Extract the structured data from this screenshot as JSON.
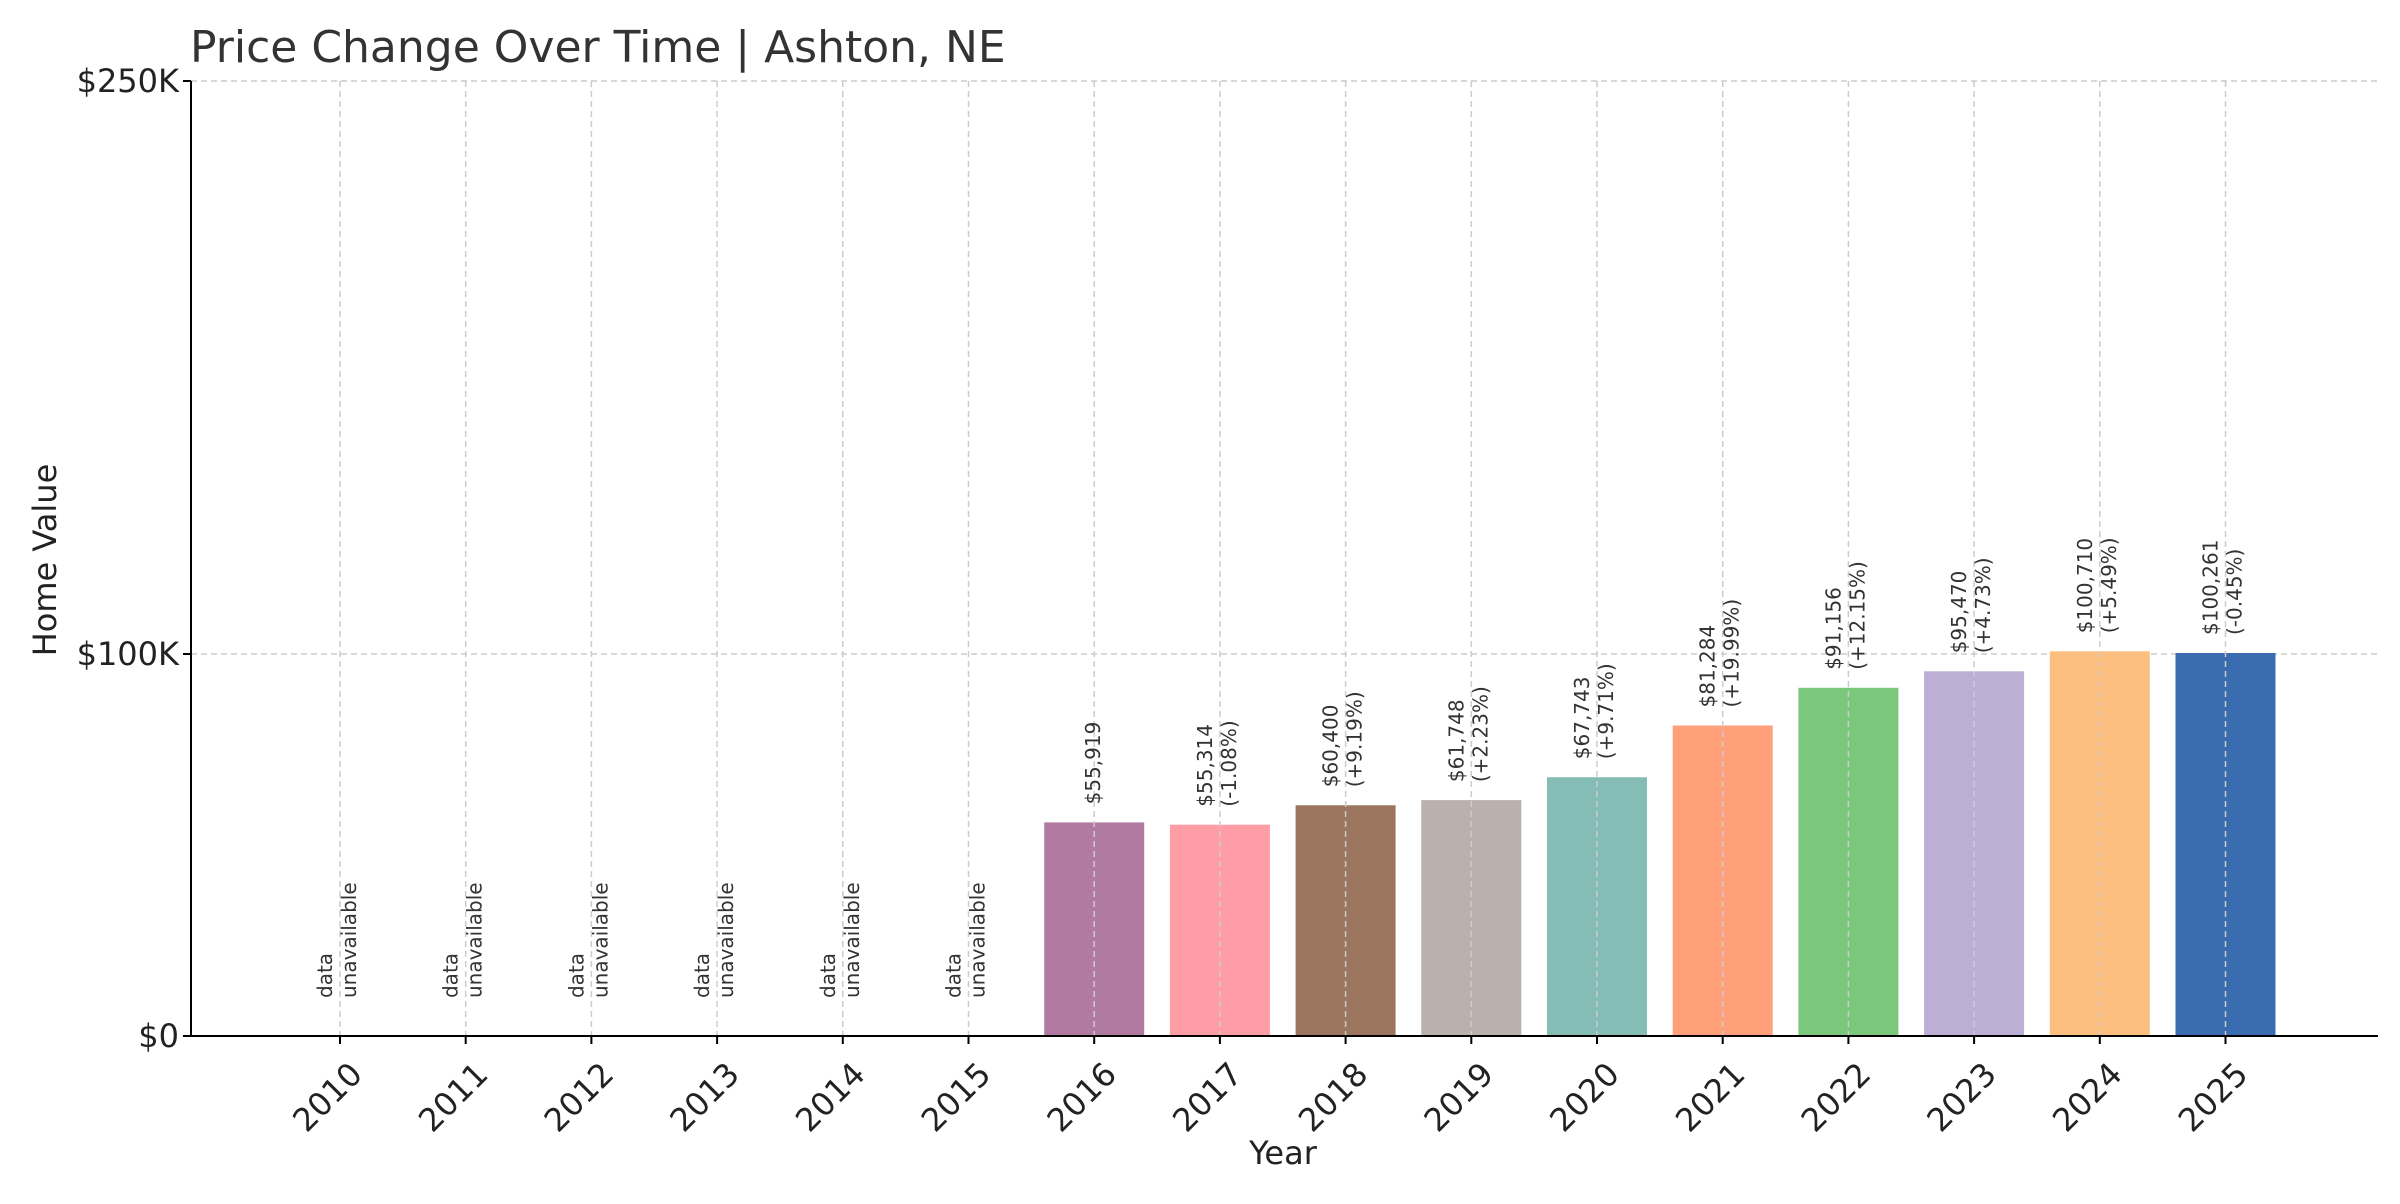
{
  "chart_data": {
    "type": "bar",
    "title": "Price Change Over Time | Ashton, NE",
    "xlabel": "Year",
    "ylabel": "Home Value",
    "ylim": [
      0,
      250000
    ],
    "ytick_values": [
      0,
      100000,
      250000
    ],
    "ytick_labels": [
      "$0",
      "$100K",
      "$250K"
    ],
    "grid": true,
    "categories": [
      "2010",
      "2011",
      "2012",
      "2013",
      "2014",
      "2015",
      "2016",
      "2017",
      "2018",
      "2019",
      "2020",
      "2021",
      "2022",
      "2023",
      "2024",
      "2025"
    ],
    "values": [
      null,
      null,
      null,
      null,
      null,
      null,
      55919,
      55314,
      60400,
      61748,
      67743,
      81284,
      91156,
      95470,
      100710,
      100261
    ],
    "value_labels": [
      "",
      "",
      "",
      "",
      "",
      "",
      "$55,919",
      "$55,314",
      "$60,400",
      "$61,748",
      "$67,743",
      "$81,284",
      "$91,156",
      "$95,470",
      "$100,710",
      "$100,261"
    ],
    "change_labels": [
      "",
      "",
      "",
      "",
      "",
      "",
      "",
      "(-1.08%)",
      "(+9.19%)",
      "(+2.23%)",
      "(+9.71%)",
      "(+19.99%)",
      "(+12.15%)",
      "(+4.73%)",
      "(+5.49%)",
      "(-0.45%)"
    ],
    "unavailable_label": [
      "data",
      "unavailable"
    ],
    "colors": [
      "#b07aa1",
      "#b07aa1",
      "#b07aa1",
      "#b07aa1",
      "#b07aa1",
      "#b07aa1",
      "#b07aa1",
      "#ff9da7",
      "#9c755f",
      "#bab0ac",
      "#86bcb6",
      "#ffa07a",
      "#7bc87c",
      "#bcaed4",
      "#fdbf80",
      "#3a6db0"
    ]
  }
}
